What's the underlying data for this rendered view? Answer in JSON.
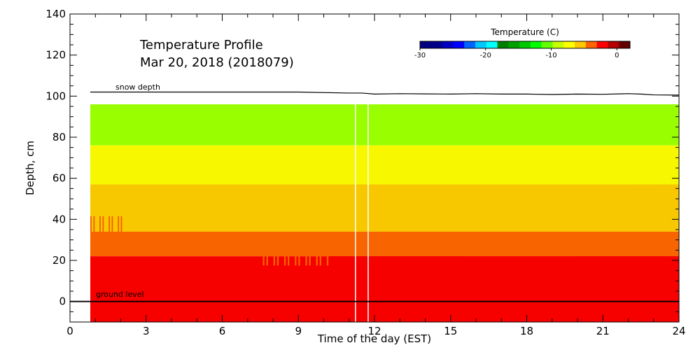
{
  "chart_data": {
    "type": "heatmap",
    "title": "Temperature Profile",
    "subtitle": "Mar 20, 2018 (2018079)",
    "xlabel": "Time of the day (EST)",
    "ylabel": "Depth, cm",
    "xlim": [
      0,
      24
    ],
    "ylim": [
      -10,
      140
    ],
    "xticks": [
      "0",
      "3",
      "6",
      "9",
      "12",
      "15",
      "18",
      "21",
      "24"
    ],
    "yticks": [
      "0",
      "20",
      "40",
      "60",
      "80",
      "100",
      "120",
      "140"
    ],
    "colorbar": {
      "title": "Temperature (C)",
      "range": [
        -30,
        2
      ],
      "ticks": [
        "-30",
        "-20",
        "-10",
        "0"
      ],
      "colors": [
        "#000080",
        "#00008b",
        "#0000c0",
        "#0000ff",
        "#0064ff",
        "#00c8ff",
        "#00ffff",
        "#008000",
        "#00a000",
        "#00c800",
        "#00ff00",
        "#64ff00",
        "#c8ff00",
        "#ffff00",
        "#ffc800",
        "#ff6400",
        "#ff0000",
        "#b40000",
        "#640000"
      ]
    },
    "layers": [
      {
        "depth_bottom": 76,
        "depth_top": 96,
        "color": "#99ff00"
      },
      {
        "depth_bottom": 57,
        "depth_top": 76,
        "color": "#f7f700"
      },
      {
        "depth_bottom": 34,
        "depth_top": 57,
        "color": "#f7c800"
      },
      {
        "depth_bottom": 22,
        "depth_top": 34,
        "color": "#f76400"
      },
      {
        "depth_bottom": -10,
        "depth_top": 22,
        "color": "#f70000"
      }
    ],
    "data_start_hour": 0.8,
    "snow_depth": {
      "label": "snow depth",
      "x": [
        0.8,
        9,
        11,
        11.5,
        12,
        13,
        14,
        15,
        16,
        17,
        18,
        19,
        20,
        21,
        22,
        22.5,
        23,
        24
      ],
      "y": [
        102,
        102,
        101.5,
        101.5,
        101,
        101.2,
        101.1,
        101,
        101.2,
        101,
        101,
        100.8,
        101,
        100.9,
        101.2,
        101,
        100.6,
        100.5
      ]
    },
    "ground_level": {
      "label": "ground level",
      "y": 0
    },
    "gap_lines_x": [
      11.25,
      11.75
    ]
  }
}
